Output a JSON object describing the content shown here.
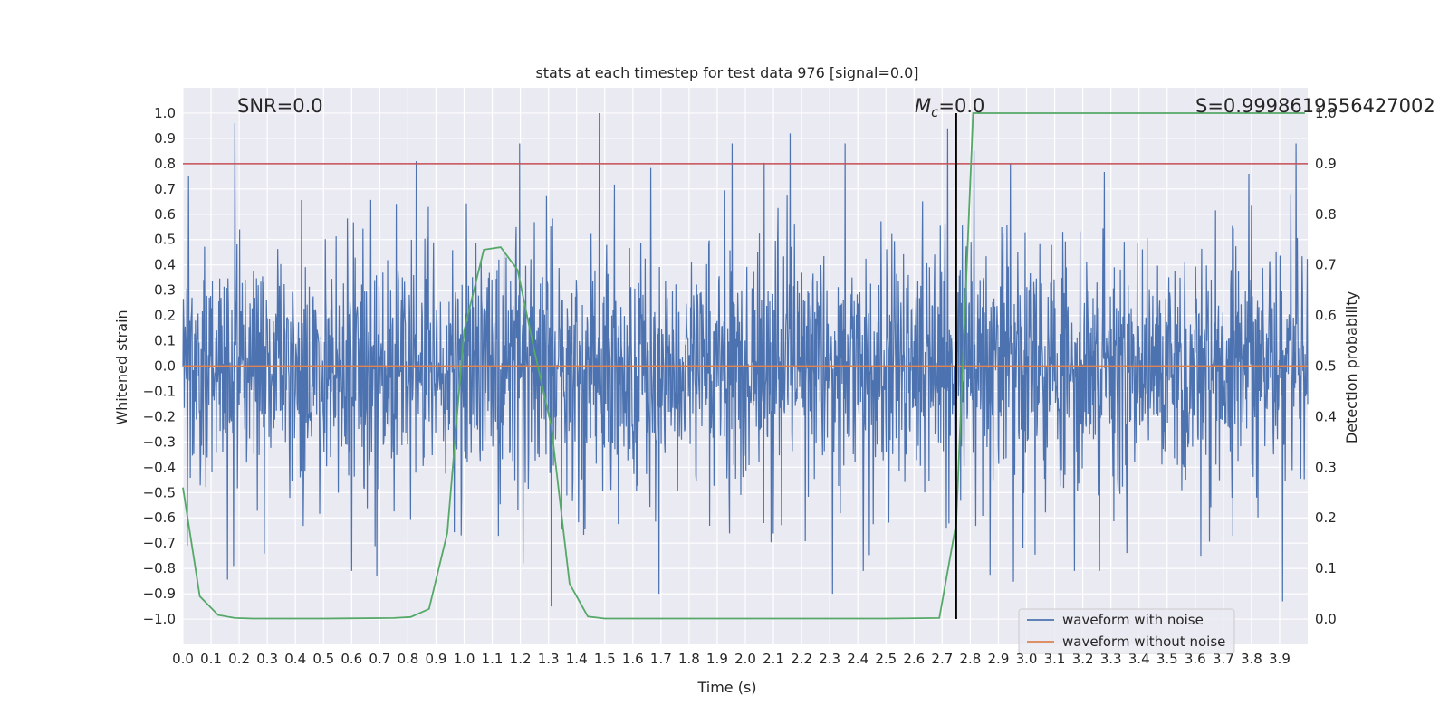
{
  "chart_data": {
    "type": "line",
    "title": "stats at each timestep for test data 976 [signal=0.0]",
    "xlabel": "Time (s)",
    "ylabel_left": "Whitened strain",
    "ylabel_right": "Detection probability",
    "xlim": [
      0.0,
      4.0
    ],
    "ylim_left": [
      -1.1,
      1.1
    ],
    "ylim_right": [
      -0.05,
      1.05
    ],
    "x_ticks": [
      "0.0",
      "0.1",
      "0.2",
      "0.3",
      "0.4",
      "0.5",
      "0.6",
      "0.7",
      "0.8",
      "0.9",
      "1.0",
      "1.1",
      "1.2",
      "1.3",
      "1.4",
      "1.5",
      "1.6",
      "1.7",
      "1.8",
      "1.9",
      "2.0",
      "2.1",
      "2.2",
      "2.3",
      "2.4",
      "2.5",
      "2.6",
      "2.7",
      "2.8",
      "2.9",
      "3.0",
      "3.1",
      "3.2",
      "3.3",
      "3.4",
      "3.5",
      "3.6",
      "3.7",
      "3.8",
      "3.9"
    ],
    "y_ticks_left": [
      "1.0",
      "0.9",
      "0.8",
      "0.7",
      "0.6",
      "0.5",
      "0.4",
      "0.3",
      "0.2",
      "0.1",
      "0.0",
      "-0.1",
      "-0.2",
      "-0.3",
      "-0.4",
      "-0.5",
      "-0.6",
      "-0.7",
      "-0.8",
      "-0.9",
      "-1.0"
    ],
    "y_ticks_right": [
      "1.0",
      "0.9",
      "0.8",
      "0.7",
      "0.6",
      "0.5",
      "0.4",
      "0.3",
      "0.2",
      "0.1",
      "0.0"
    ],
    "grid": true,
    "legend_placement": "lower-right",
    "annotations": {
      "snr": "SNR=0.0",
      "mc": "M",
      "mc_sub": "c",
      "mc_value": "=0.0",
      "s": "S=0.9998619556427002"
    },
    "threshold_line": {
      "y_right": 0.9,
      "color": "#c44e52"
    },
    "vertical_marker": {
      "x": 2.75,
      "y_right_range": [
        0.0,
        1.0
      ],
      "color": "#000000"
    },
    "series": [
      {
        "name": "waveform with noise",
        "color": "#4c72b0",
        "axis": "left",
        "noise_amplitude": 0.3,
        "peaks": [
          {
            "x": 0.02,
            "y": 0.75
          },
          {
            "x": 0.015,
            "y": -0.71
          },
          {
            "x": 0.185,
            "y": 0.96
          },
          {
            "x": 0.18,
            "y": -0.79
          },
          {
            "x": 0.69,
            "y": 0.91
          },
          {
            "x": 0.69,
            "y": -0.83
          },
          {
            "x": 0.83,
            "y": 0.81
          },
          {
            "x": 0.6,
            "y": -0.81
          },
          {
            "x": 1.48,
            "y": 1.0
          },
          {
            "x": 1.21,
            "y": -0.78
          },
          {
            "x": 1.31,
            "y": -0.95
          },
          {
            "x": 2.16,
            "y": 0.92
          },
          {
            "x": 2.72,
            "y": 0.94
          },
          {
            "x": 2.42,
            "y": -0.81
          },
          {
            "x": 3.17,
            "y": -0.81
          },
          {
            "x": 3.26,
            "y": -0.81
          },
          {
            "x": 3.62,
            "y": -0.75
          },
          {
            "x": 3.79,
            "y": 0.76
          },
          {
            "x": 3.91,
            "y": -0.93
          },
          {
            "x": 3.94,
            "y": 0.68
          }
        ]
      },
      {
        "name": "waveform without noise",
        "color": "#dd8452",
        "axis": "left",
        "x": [
          0.0,
          4.0
        ],
        "y": [
          0.0,
          0.0
        ]
      },
      {
        "name": "detection probability",
        "color": "#55a868",
        "axis": "right",
        "x": [
          0.0,
          0.06,
          0.125,
          0.185,
          0.25,
          0.5,
          0.75,
          0.81,
          0.875,
          0.94,
          1.0,
          1.07,
          1.13,
          1.19,
          1.25,
          1.31,
          1.375,
          1.44,
          1.5,
          1.75,
          2.0,
          2.5,
          2.69,
          2.75,
          2.81,
          3.0,
          3.5,
          3.99
        ],
        "y": [
          0.26,
          0.045,
          0.008,
          0.002,
          0.001,
          0.001,
          0.002,
          0.004,
          0.02,
          0.17,
          0.57,
          0.73,
          0.735,
          0.69,
          0.53,
          0.38,
          0.07,
          0.005,
          0.001,
          0.001,
          0.001,
          0.001,
          0.002,
          0.19,
          1.0,
          1.0,
          1.0,
          1.0
        ]
      }
    ]
  }
}
